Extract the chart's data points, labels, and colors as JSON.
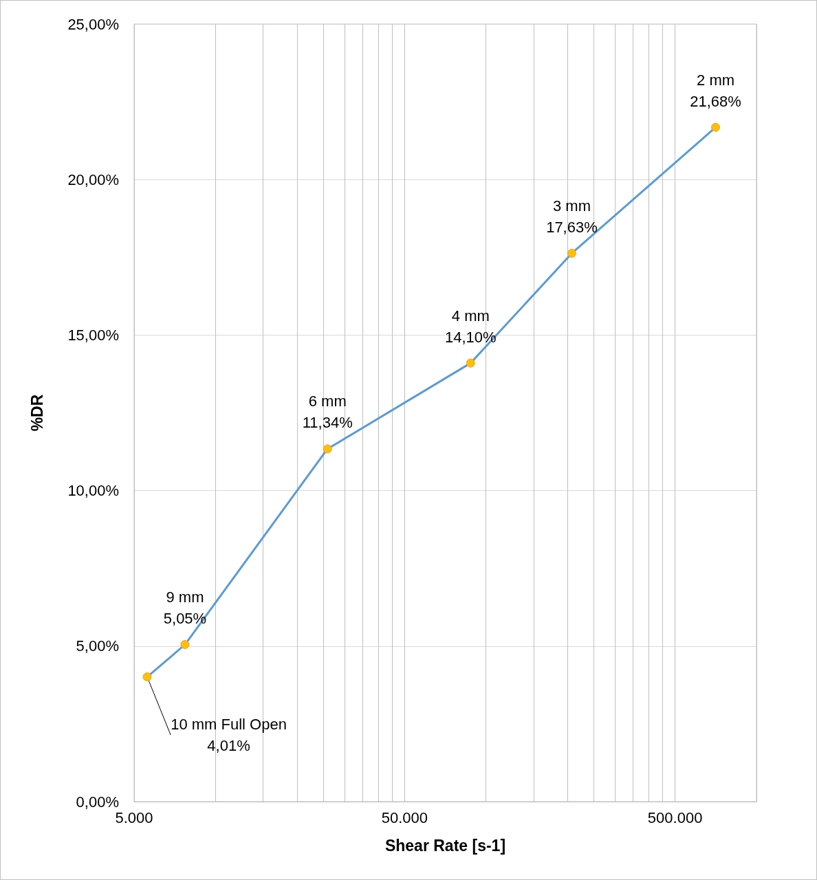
{
  "chart_data": {
    "type": "line",
    "xlabel": "Shear Rate [s-1]",
    "ylabel": "%DR",
    "log": "x",
    "grid": true,
    "marker": "circle",
    "line_style": "solid",
    "x": [
      5590,
      7710,
      25940,
      87700,
      207600,
      706000
    ],
    "series": [
      {
        "color": "#5b9bd5",
        "values": [
          4.01,
          5.05,
          11.34,
          14.1,
          17.63,
          21.68
        ],
        "value_labels": [
          "10 mm Full Open\n4,01%",
          "9 mm\n5,05%",
          "6 mm\n11,34%",
          "4 mm\n14,10%",
          "3 mm\n17,63%",
          "2 mm\n21,68%"
        ]
      }
    ],
    "xlim": [
      5000,
      1000000
    ],
    "xticks": [
      {
        "value": 5000,
        "label": "5.000"
      },
      {
        "value": 10000,
        "label": null
      },
      {
        "value": 15000,
        "label": null
      },
      {
        "value": 20000,
        "label": null
      },
      {
        "value": 25000,
        "label": null
      },
      {
        "value": 30000,
        "label": null
      },
      {
        "value": 35000,
        "label": null
      },
      {
        "value": 40000,
        "label": null
      },
      {
        "value": 45000,
        "label": null
      },
      {
        "value": 50000,
        "label": "50.000"
      },
      {
        "value": 100000,
        "label": null
      },
      {
        "value": 150000,
        "label": null
      },
      {
        "value": 200000,
        "label": null
      },
      {
        "value": 250000,
        "label": null
      },
      {
        "value": 300000,
        "label": null
      },
      {
        "value": 350000,
        "label": null
      },
      {
        "value": 400000,
        "label": null
      },
      {
        "value": 450000,
        "label": null
      },
      {
        "value": 500000,
        "label": "500.000"
      },
      {
        "value": 1000000,
        "label": null
      }
    ],
    "ylim": [
      0,
      25
    ],
    "yticks": [
      {
        "value": 0,
        "label": "0,00%"
      },
      {
        "value": 5,
        "label": "5,00%"
      },
      {
        "value": 10,
        "label": "10,00%"
      },
      {
        "value": 15,
        "label": "15,00%"
      },
      {
        "value": 20,
        "label": "20,00%"
      },
      {
        "value": 25,
        "label": "25,00%"
      }
    ]
  }
}
